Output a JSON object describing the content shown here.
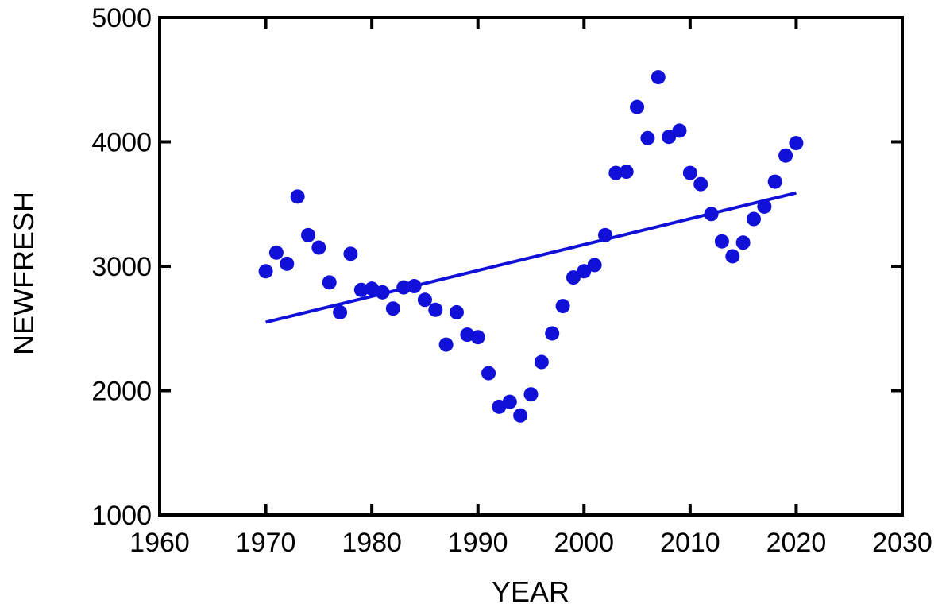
{
  "chart_data": {
    "type": "scatter",
    "title": "",
    "xlabel": "YEAR",
    "ylabel": "NEWFRESH",
    "xlim": [
      1960,
      2030
    ],
    "ylim": [
      1000,
      5000
    ],
    "xticks": [
      "1960",
      "1970",
      "1980",
      "1990",
      "2000",
      "2010",
      "2020",
      "2030"
    ],
    "yticks": [
      "1000",
      "2000",
      "3000",
      "4000",
      "5000"
    ],
    "grid": false,
    "legend": "none",
    "colors": {
      "points": "#1010d8",
      "trendline": "#1010d8",
      "axes": "#000000"
    },
    "series": [
      {
        "x": [
          1970,
          1971,
          1972,
          1973,
          1974,
          1975,
          1976,
          1977,
          1978,
          1979,
          1980,
          1981,
          1982,
          1983,
          1984,
          1985,
          1986,
          1987,
          1988,
          1989,
          1990,
          1991,
          1992,
          1993,
          1994,
          1995,
          1996,
          1997,
          1998,
          1999,
          2000,
          2001,
          2002,
          2003,
          2004,
          2005,
          2006,
          2007,
          2008,
          2009,
          2010,
          2011,
          2012,
          2013,
          2014,
          2015,
          2016,
          2017,
          2018,
          2019,
          2020
        ],
        "y": [
          2960,
          3110,
          3020,
          3560,
          3250,
          3150,
          2870,
          2630,
          3100,
          2810,
          2820,
          2790,
          2660,
          2830,
          2840,
          2730,
          2650,
          2370,
          2630,
          2450,
          2430,
          2140,
          1870,
          1910,
          1800,
          1970,
          2230,
          2460,
          2680,
          2910,
          2960,
          3010,
          3250,
          3750,
          3760,
          4280,
          4030,
          4520,
          4040,
          4090,
          3750,
          3660,
          3420,
          3200,
          3080,
          3190,
          3380,
          3480,
          3680,
          3890,
          3990
        ]
      }
    ],
    "trendline": {
      "x": [
        1970,
        2020
      ],
      "y": [
        2550,
        3590
      ]
    }
  }
}
